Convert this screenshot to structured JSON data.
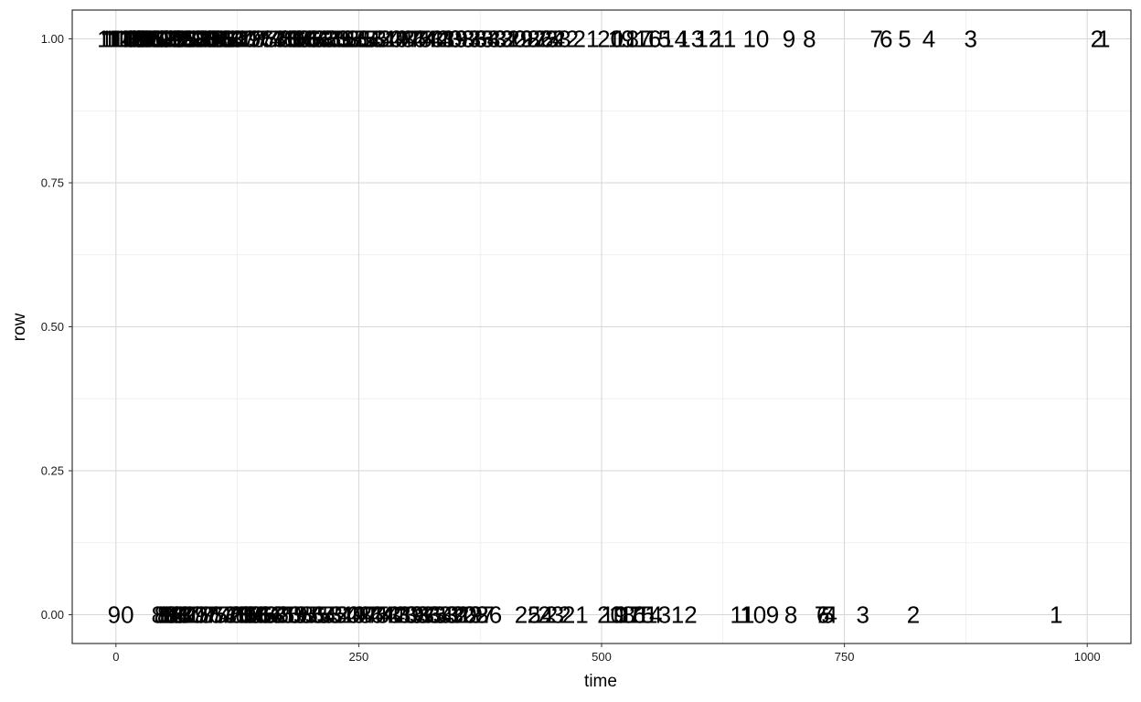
{
  "chart_data": {
    "type": "scatter",
    "title": "",
    "xlabel": "time",
    "ylabel": "row",
    "xlim": [
      -45,
      1045
    ],
    "ylim": [
      -0.05,
      1.05
    ],
    "x_ticks": [
      0,
      250,
      500,
      750,
      1000
    ],
    "x_tick_labels": [
      "0",
      "250",
      "500",
      "750",
      "1000"
    ],
    "y_ticks": [
      0,
      0.25,
      0.5,
      0.75,
      1
    ],
    "y_tick_labels": [
      "0.00",
      "0.25",
      "0.50",
      "0.75",
      "1.00"
    ],
    "grid": true,
    "legend": "none",
    "colors": {
      "panel_border": "#333333",
      "grid_major": "#d6d6d6",
      "grid_minor": "#ececec",
      "text": "#000000"
    },
    "series": [
      {
        "y": 1,
        "points": [
          {
            "x": 1010,
            "label": "2"
          },
          {
            "x": 1017,
            "label": "1"
          },
          {
            "x": 880,
            "label": "3"
          },
          {
            "x": 837,
            "label": "4"
          },
          {
            "x": 812,
            "label": "5"
          },
          {
            "x": 793,
            "label": "6"
          },
          {
            "x": 783,
            "label": "7"
          },
          {
            "x": 714,
            "label": "8"
          },
          {
            "x": 693,
            "label": "9"
          },
          {
            "x": 659,
            "label": "10"
          },
          {
            "x": 626,
            "label": "11"
          },
          {
            "x": 610,
            "label": "12"
          },
          {
            "x": 592,
            "label": "13"
          },
          {
            "x": 575,
            "label": "14"
          },
          {
            "x": 558,
            "label": "15"
          },
          {
            "x": 548,
            "label": "16"
          },
          {
            "x": 538,
            "label": "17"
          },
          {
            "x": 525,
            "label": "18"
          },
          {
            "x": 520,
            "label": "19"
          },
          {
            "x": 509,
            "label": "20"
          },
          {
            "x": 484,
            "label": "21"
          },
          {
            "x": 463,
            "label": "22"
          },
          {
            "x": 455,
            "label": "23"
          },
          {
            "x": 449,
            "label": "24"
          },
          {
            "x": 443,
            "label": "25"
          },
          {
            "x": 437,
            "label": "26"
          },
          {
            "x": 430,
            "label": "27"
          },
          {
            "x": 423,
            "label": "28"
          },
          {
            "x": 416,
            "label": "29"
          },
          {
            "x": 409,
            "label": "30"
          },
          {
            "x": 402,
            "label": "31"
          },
          {
            "x": 396,
            "label": "32"
          },
          {
            "x": 389,
            "label": "33"
          },
          {
            "x": 382,
            "label": "34"
          },
          {
            "x": 376,
            "label": "35"
          },
          {
            "x": 369,
            "label": "36"
          },
          {
            "x": 362,
            "label": "37"
          },
          {
            "x": 356,
            "label": "38"
          },
          {
            "x": 349,
            "label": "39"
          },
          {
            "x": 343,
            "label": "40"
          },
          {
            "x": 336,
            "label": "41"
          },
          {
            "x": 330,
            "label": "42"
          },
          {
            "x": 324,
            "label": "43"
          },
          {
            "x": 318,
            "label": "44"
          },
          {
            "x": 312,
            "label": "45"
          },
          {
            "x": 306,
            "label": "46"
          },
          {
            "x": 300,
            "label": "47"
          },
          {
            "x": 294,
            "label": "48"
          },
          {
            "x": 288,
            "label": "49"
          },
          {
            "x": 282,
            "label": "50"
          },
          {
            "x": 276,
            "label": "51"
          },
          {
            "x": 270,
            "label": "52"
          },
          {
            "x": 265,
            "label": "53"
          },
          {
            "x": 259,
            "label": "54"
          },
          {
            "x": 254,
            "label": "55"
          },
          {
            "x": 248,
            "label": "56"
          },
          {
            "x": 243,
            "label": "57"
          },
          {
            "x": 237,
            "label": "58"
          },
          {
            "x": 232,
            "label": "59"
          },
          {
            "x": 227,
            "label": "60"
          },
          {
            "x": 221,
            "label": "61"
          },
          {
            "x": 216,
            "label": "62"
          },
          {
            "x": 211,
            "label": "63"
          },
          {
            "x": 206,
            "label": "64"
          },
          {
            "x": 201,
            "label": "65"
          },
          {
            "x": 196,
            "label": "66"
          },
          {
            "x": 191,
            "label": "67"
          },
          {
            "x": 186,
            "label": "68"
          },
          {
            "x": 181,
            "label": "69"
          },
          {
            "x": 176,
            "label": "70"
          },
          {
            "x": 172,
            "label": "71"
          },
          {
            "x": 167,
            "label": "72"
          },
          {
            "x": 162,
            "label": "73"
          },
          {
            "x": 158,
            "label": "74"
          },
          {
            "x": 153,
            "label": "75"
          },
          {
            "x": 149,
            "label": "76"
          },
          {
            "x": 144,
            "label": "77"
          },
          {
            "x": 140,
            "label": "78"
          },
          {
            "x": 136,
            "label": "79"
          },
          {
            "x": 131,
            "label": "80"
          },
          {
            "x": 127,
            "label": "81"
          },
          {
            "x": 123,
            "label": "82"
          },
          {
            "x": 119,
            "label": "83"
          },
          {
            "x": 115,
            "label": "84"
          },
          {
            "x": 111,
            "label": "85"
          },
          {
            "x": 107,
            "label": "86"
          },
          {
            "x": 103,
            "label": "87"
          },
          {
            "x": 99,
            "label": "88"
          },
          {
            "x": 95,
            "label": "89"
          },
          {
            "x": 91,
            "label": "90"
          },
          {
            "x": 87,
            "label": "91"
          },
          {
            "x": 83,
            "label": "92"
          },
          {
            "x": 79,
            "label": "93"
          },
          {
            "x": 75,
            "label": "94"
          },
          {
            "x": 71,
            "label": "95"
          },
          {
            "x": 67,
            "label": "96"
          },
          {
            "x": 63,
            "label": "97"
          },
          {
            "x": 59,
            "label": "98"
          },
          {
            "x": 55,
            "label": "99"
          },
          {
            "x": 51,
            "label": "100"
          },
          {
            "x": 47,
            "label": "101"
          },
          {
            "x": 43,
            "label": "102"
          },
          {
            "x": 39,
            "label": "103"
          },
          {
            "x": 35,
            "label": "104"
          },
          {
            "x": 31,
            "label": "105"
          },
          {
            "x": 27,
            "label": "106"
          },
          {
            "x": 23,
            "label": "107"
          },
          {
            "x": 19,
            "label": "108"
          },
          {
            "x": 15,
            "label": "109"
          },
          {
            "x": 12,
            "label": "110"
          },
          {
            "x": 9,
            "label": "111"
          },
          {
            "x": 6,
            "label": "112"
          },
          {
            "x": 3,
            "label": "113"
          },
          {
            "x": 0,
            "label": "114"
          },
          {
            "x": 10,
            "label": "138"
          }
        ]
      },
      {
        "y": 0,
        "points": [
          {
            "x": 968,
            "label": "1"
          },
          {
            "x": 821,
            "label": "2"
          },
          {
            "x": 769,
            "label": "3"
          },
          {
            "x": 736,
            "label": "4"
          },
          {
            "x": 733,
            "label": "5"
          },
          {
            "x": 728,
            "label": "6"
          },
          {
            "x": 726,
            "label": "7"
          },
          {
            "x": 695,
            "label": "8"
          },
          {
            "x": 676,
            "label": "9"
          },
          {
            "x": 656,
            "label": "10"
          },
          {
            "x": 645,
            "label": "11"
          },
          {
            "x": 585,
            "label": "12"
          },
          {
            "x": 558,
            "label": "13"
          },
          {
            "x": 549,
            "label": "14"
          },
          {
            "x": 541,
            "label": "15"
          },
          {
            "x": 532,
            "label": "16"
          },
          {
            "x": 527,
            "label": "17"
          },
          {
            "x": 521,
            "label": "18"
          },
          {
            "x": 513,
            "label": "19"
          },
          {
            "x": 509,
            "label": "20"
          },
          {
            "x": 473,
            "label": "21"
          },
          {
            "x": 455,
            "label": "22"
          },
          {
            "x": 448,
            "label": "23"
          },
          {
            "x": 437,
            "label": "24"
          },
          {
            "x": 424,
            "label": "25"
          },
          {
            "x": 384,
            "label": "26"
          },
          {
            "x": 376,
            "label": "27"
          },
          {
            "x": 370,
            "label": "28"
          },
          {
            "x": 364,
            "label": "29"
          },
          {
            "x": 358,
            "label": "30"
          },
          {
            "x": 352,
            "label": "31"
          },
          {
            "x": 346,
            "label": "32"
          },
          {
            "x": 340,
            "label": "33"
          },
          {
            "x": 334,
            "label": "34"
          },
          {
            "x": 328,
            "label": "35"
          },
          {
            "x": 322,
            "label": "36"
          },
          {
            "x": 316,
            "label": "37"
          },
          {
            "x": 310,
            "label": "38"
          },
          {
            "x": 304,
            "label": "39"
          },
          {
            "x": 298,
            "label": "40"
          },
          {
            "x": 292,
            "label": "41"
          },
          {
            "x": 286,
            "label": "42"
          },
          {
            "x": 280,
            "label": "43"
          },
          {
            "x": 274,
            "label": "44"
          },
          {
            "x": 268,
            "label": "45"
          },
          {
            "x": 262,
            "label": "46"
          },
          {
            "x": 256,
            "label": "47"
          },
          {
            "x": 250,
            "label": "48"
          },
          {
            "x": 244,
            "label": "49"
          },
          {
            "x": 238,
            "label": "50"
          },
          {
            "x": 232,
            "label": "51"
          },
          {
            "x": 226,
            "label": "52"
          },
          {
            "x": 220,
            "label": "53"
          },
          {
            "x": 214,
            "label": "54"
          },
          {
            "x": 208,
            "label": "55"
          },
          {
            "x": 202,
            "label": "56"
          },
          {
            "x": 196,
            "label": "57"
          },
          {
            "x": 190,
            "label": "58"
          },
          {
            "x": 184,
            "label": "59"
          },
          {
            "x": 178,
            "label": "60"
          },
          {
            "x": 172,
            "label": "61"
          },
          {
            "x": 166,
            "label": "62"
          },
          {
            "x": 161,
            "label": "63"
          },
          {
            "x": 156,
            "label": "64"
          },
          {
            "x": 151,
            "label": "65"
          },
          {
            "x": 146,
            "label": "66"
          },
          {
            "x": 141,
            "label": "67"
          },
          {
            "x": 136,
            "label": "68"
          },
          {
            "x": 131,
            "label": "69"
          },
          {
            "x": 126,
            "label": "70"
          },
          {
            "x": 121,
            "label": "71"
          },
          {
            "x": 116,
            "label": "72"
          },
          {
            "x": 111,
            "label": "73"
          },
          {
            "x": 106,
            "label": "74"
          },
          {
            "x": 101,
            "label": "75"
          },
          {
            "x": 96,
            "label": "76"
          },
          {
            "x": 91,
            "label": "77"
          },
          {
            "x": 86,
            "label": "78"
          },
          {
            "x": 81,
            "label": "79"
          },
          {
            "x": 77,
            "label": "80"
          },
          {
            "x": 73,
            "label": "81"
          },
          {
            "x": 69,
            "label": "82"
          },
          {
            "x": 65,
            "label": "83"
          },
          {
            "x": 62,
            "label": "84"
          },
          {
            "x": 59,
            "label": "85"
          },
          {
            "x": 56,
            "label": "86"
          },
          {
            "x": 53,
            "label": "87"
          },
          {
            "x": 50,
            "label": "88"
          },
          {
            "x": 5,
            "label": "90"
          }
        ]
      }
    ]
  }
}
